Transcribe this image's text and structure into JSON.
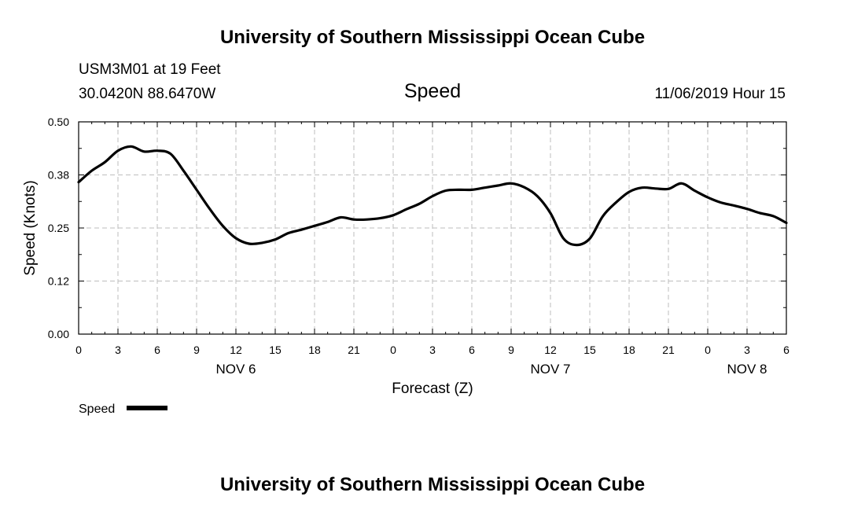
{
  "header": {
    "title": "University of Southern Mississippi Ocean Cube",
    "station_line": "USM3M01 at 19 Feet",
    "coords": "30.0420N 88.6470W",
    "variable": "Speed",
    "timestamp": "11/06/2019 Hour 15"
  },
  "footer": {
    "title": "University of Southern Mississippi Ocean Cube"
  },
  "legend": {
    "label": "Speed"
  },
  "chart_data": {
    "type": "line",
    "xlabel": "Forecast (Z)",
    "ylabel": "Speed (Knots)",
    "ylim": [
      0,
      0.5
    ],
    "xlim": [
      0,
      54
    ],
    "x_unit": "forecast hours from Nov 6 00Z",
    "yticks": [
      "0.00",
      "0.12",
      "0.25",
      "0.38",
      "0.50"
    ],
    "ytick_values": [
      0,
      0.125,
      0.25,
      0.375,
      0.5
    ],
    "xtick_labels": [
      "0",
      "3",
      "6",
      "9",
      "12",
      "15",
      "18",
      "21",
      "0",
      "3",
      "6",
      "9",
      "12",
      "15",
      "18",
      "21",
      "0",
      "3",
      "6"
    ],
    "date_labels": [
      {
        "label": "NOV 6",
        "hour": 12
      },
      {
        "label": "NOV 7",
        "hour": 36
      },
      {
        "label": "NOV 8",
        "hour": 51
      }
    ],
    "grid": true,
    "legend_position": "bottom-left",
    "series": [
      {
        "name": "Speed",
        "color": "#000000",
        "x": [
          0,
          1,
          2,
          3,
          4,
          5,
          6,
          7,
          8,
          9,
          10,
          11,
          12,
          13,
          14,
          15,
          16,
          17,
          18,
          19,
          20,
          21,
          22,
          23,
          24,
          25,
          26,
          27,
          28,
          29,
          30,
          31,
          32,
          33,
          34,
          35,
          36,
          37,
          38,
          39,
          40,
          41,
          42,
          43,
          44,
          45,
          46,
          47,
          48,
          49,
          50,
          51,
          52,
          53,
          54
        ],
        "values": [
          0.358,
          0.385,
          0.405,
          0.432,
          0.442,
          0.43,
          0.432,
          0.425,
          0.385,
          0.34,
          0.295,
          0.255,
          0.226,
          0.213,
          0.215,
          0.223,
          0.238,
          0.246,
          0.255,
          0.264,
          0.275,
          0.27,
          0.27,
          0.273,
          0.28,
          0.294,
          0.307,
          0.325,
          0.338,
          0.34,
          0.34,
          0.345,
          0.35,
          0.355,
          0.346,
          0.325,
          0.285,
          0.225,
          0.21,
          0.225,
          0.278,
          0.31,
          0.335,
          0.345,
          0.343,
          0.342,
          0.355,
          0.338,
          0.322,
          0.31,
          0.303,
          0.295,
          0.285,
          0.278,
          0.262
        ]
      }
    ]
  }
}
